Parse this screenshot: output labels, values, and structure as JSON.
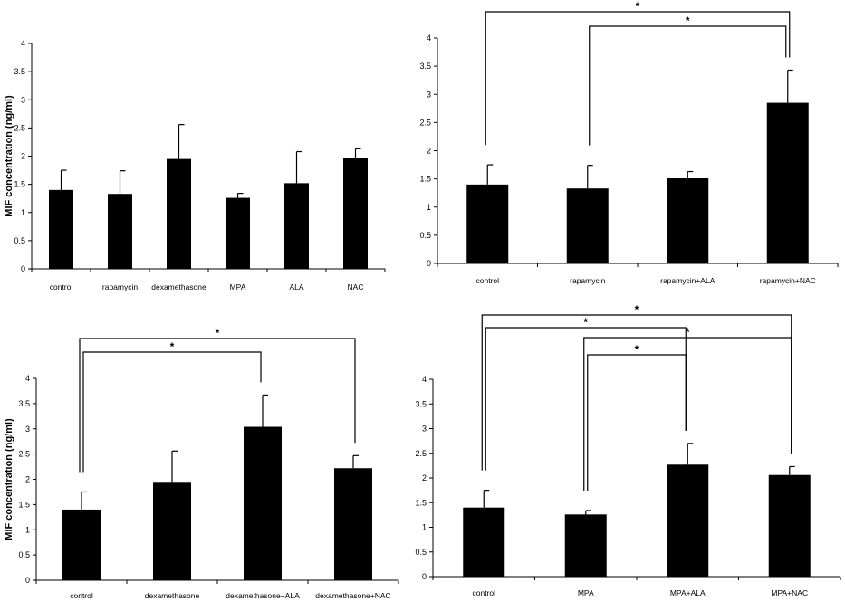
{
  "figure": {
    "colors": {
      "bar": "#000000",
      "axis": "#000000",
      "background": "#ffffff"
    }
  },
  "chart_data": [
    {
      "type": "bar",
      "panel": "top-left",
      "categories": [
        "control",
        "rapamycin",
        "dexamethasone",
        "MPA",
        "ALA",
        "NAC"
      ],
      "values": [
        1.4,
        1.33,
        1.95,
        1.26,
        1.52,
        1.96
      ],
      "errors": [
        0.35,
        0.41,
        0.61,
        0.08,
        0.56,
        0.17
      ],
      "yticks": [
        "0",
        "0.5",
        "1",
        "1.5",
        "2",
        "2.5",
        "3",
        "3.5",
        "4"
      ],
      "ylim": [
        0,
        4
      ],
      "ylabel": "MIF concentration  (ng/ml)",
      "grid": false,
      "significance": []
    },
    {
      "type": "bar",
      "panel": "top-right",
      "categories": [
        "control",
        "rapamycin",
        "rapamycin+ALA",
        "rapamycin+NAC"
      ],
      "values": [
        1.4,
        1.33,
        1.51,
        2.85
      ],
      "errors": [
        0.35,
        0.41,
        0.12,
        0.58
      ],
      "yticks": [
        "0",
        "0.5",
        "1",
        "1.5",
        "2",
        "2.5",
        "3",
        "3.5",
        "4"
      ],
      "ylim": [
        0,
        4
      ],
      "ylabel": "",
      "grid": false,
      "significance": [
        {
          "from": 0,
          "to": 3,
          "label": "*"
        },
        {
          "from": 1,
          "to": 3,
          "label": "*"
        }
      ]
    },
    {
      "type": "bar",
      "panel": "bottom-left",
      "categories": [
        "control",
        "dexamethasone",
        "dexamethasone+ALA",
        "dexamethasone+NAC"
      ],
      "values": [
        1.4,
        1.95,
        3.04,
        2.22
      ],
      "errors": [
        0.35,
        0.61,
        0.63,
        0.25
      ],
      "yticks": [
        "0",
        "0.5",
        "1",
        "1.5",
        "2",
        "2.5",
        "3",
        "3.5",
        "4"
      ],
      "ylim": [
        0,
        4
      ],
      "ylabel": "MIF concentration  (ng/ml)",
      "grid": false,
      "significance": [
        {
          "from": 0,
          "to": 3,
          "label": "*"
        },
        {
          "from": 0,
          "to": 2,
          "label": "*"
        }
      ]
    },
    {
      "type": "bar",
      "panel": "bottom-right",
      "categories": [
        "control",
        "MPA",
        "MPA+ALA",
        "MPA+NAC"
      ],
      "values": [
        1.4,
        1.26,
        2.27,
        2.06
      ],
      "errors": [
        0.35,
        0.08,
        0.43,
        0.17
      ],
      "yticks": [
        "0",
        "0.5",
        "1",
        "1.5",
        "2",
        "2.5",
        "3",
        "3.5",
        "4"
      ],
      "ylim": [
        0,
        4
      ],
      "ylabel": "",
      "grid": false,
      "significance": [
        {
          "from": 0,
          "to": 3,
          "label": "*"
        },
        {
          "from": 0,
          "to": 2,
          "label": "*"
        },
        {
          "from": 1,
          "to": 3,
          "label": "*"
        },
        {
          "from": 1,
          "to": 2,
          "label": "*"
        }
      ]
    }
  ]
}
